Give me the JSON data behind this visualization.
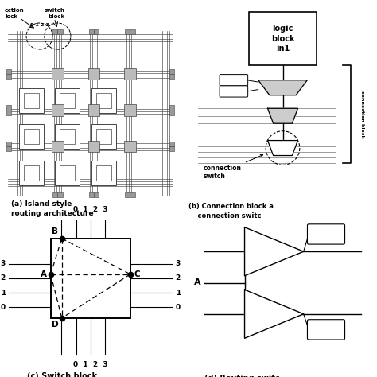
{
  "bg": "#ffffff",
  "dark": "#000000",
  "gray": "#888888",
  "lgray": "#cccccc",
  "panel_a_label": "(a) Island style\nrouting architecture",
  "panel_b_label": "(b) Connection block a\n    connection switc",
  "panel_c_label": "(c) Switch block",
  "panel_d_label": "(d) Routing switc"
}
